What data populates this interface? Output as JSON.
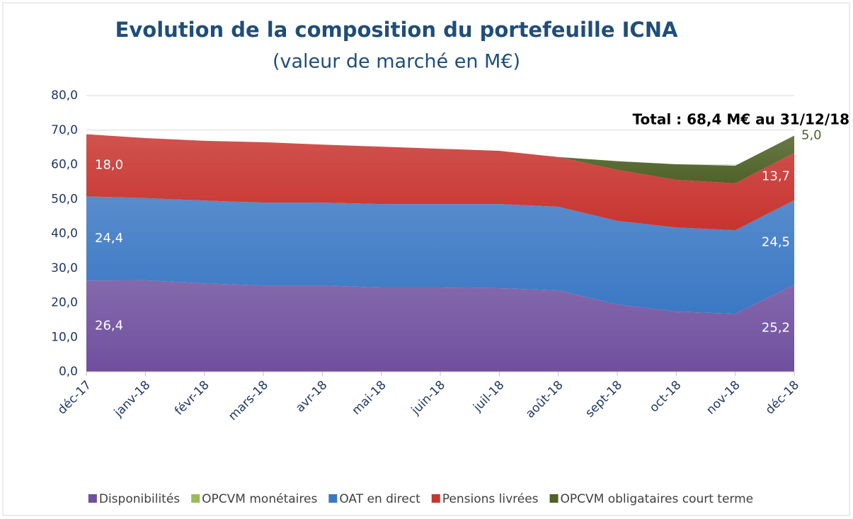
{
  "chart_data": {
    "type": "stacked_area",
    "title": "Evolution de la composition du portefeuille ICNA",
    "subtitle": "(valeur de marché en M€)",
    "annotation": "Total : 68,4 M€ au 31/12/18",
    "categories": [
      "déc-17",
      "janv-18",
      "févr-18",
      "mars-18",
      "avr-18",
      "mai-18",
      "juin-18",
      "juil-18",
      "août-18",
      "sept-18",
      "oct-18",
      "nov-18",
      "déc-18"
    ],
    "series": [
      {
        "name": "Disponibilités",
        "color": "#6f4f9e",
        "values": [
          26.4,
          26.5,
          25.6,
          25.0,
          25.0,
          24.4,
          24.4,
          24.2,
          23.6,
          19.5,
          17.4,
          16.8,
          25.2
        ],
        "value_labels": [
          "26,4",
          null,
          null,
          null,
          null,
          null,
          null,
          null,
          null,
          null,
          null,
          null,
          "25,2"
        ]
      },
      {
        "name": "OPCVM monétaires",
        "color": "#9bbb59",
        "values": [
          0,
          0,
          0,
          0,
          0,
          0,
          0,
          0,
          0,
          0,
          0,
          0,
          0
        ]
      },
      {
        "name": "OAT en direct",
        "color": "#3b78c4",
        "values": [
          24.4,
          23.8,
          24.0,
          24.0,
          24.0,
          24.2,
          24.2,
          24.4,
          24.2,
          24.2,
          24.4,
          24.2,
          24.5
        ],
        "value_labels": [
          "24,4",
          null,
          null,
          null,
          null,
          null,
          null,
          null,
          null,
          null,
          null,
          null,
          "24,5"
        ]
      },
      {
        "name": "Pensions livrées",
        "color": "#c8342f",
        "values": [
          18.0,
          17.4,
          17.3,
          17.5,
          16.8,
          16.6,
          16.0,
          15.4,
          14.4,
          14.8,
          13.8,
          13.6,
          13.7
        ],
        "value_labels": [
          "18,0",
          null,
          null,
          null,
          null,
          null,
          null,
          null,
          null,
          null,
          null,
          null,
          "13,7"
        ]
      },
      {
        "name": "OPCVM obligataires court terme",
        "color": "#4f6228",
        "values": [
          0,
          0,
          0,
          0,
          0,
          0,
          0,
          0,
          0,
          2.5,
          4.5,
          5.1,
          5.0
        ],
        "value_labels": [
          null,
          null,
          null,
          null,
          null,
          null,
          null,
          null,
          null,
          null,
          null,
          null,
          "5,0"
        ]
      }
    ],
    "ylim": [
      0,
      80
    ],
    "yticks": [
      {
        "value": 0,
        "label": "0,0"
      },
      {
        "value": 10,
        "label": "10,0"
      },
      {
        "value": 20,
        "label": "20,0"
      },
      {
        "value": 30,
        "label": "30,0"
      },
      {
        "value": 40,
        "label": "40,0"
      },
      {
        "value": 50,
        "label": "50,0"
      },
      {
        "value": 60,
        "label": "60,0"
      },
      {
        "value": 70,
        "label": "70,0"
      },
      {
        "value": 80,
        "label": "80,0"
      }
    ],
    "grid": true,
    "legend": "bottom"
  }
}
